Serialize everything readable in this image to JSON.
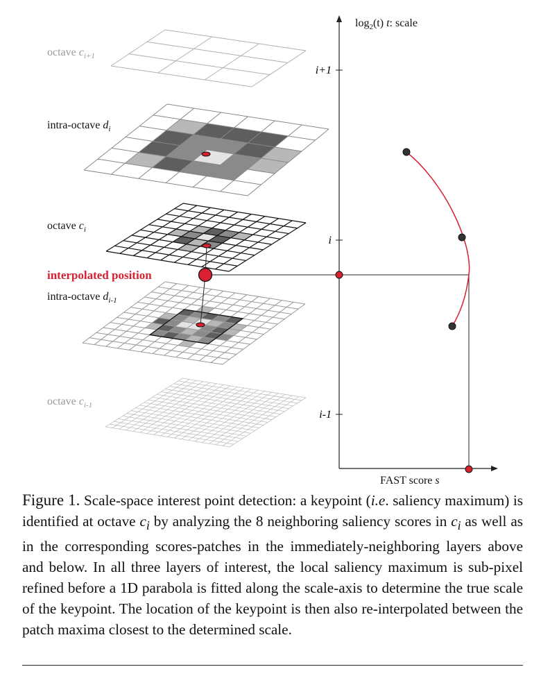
{
  "layers": [
    {
      "label": "octave",
      "sub": "i+1",
      "symbol": "c",
      "muted": true
    },
    {
      "label": "intra-octave",
      "sub": "i",
      "symbol": "d",
      "muted": false
    },
    {
      "label": "octave",
      "sub": "i",
      "symbol": "c",
      "muted": false
    },
    {
      "label": "intra-octave",
      "sub": "i-1",
      "symbol": "d",
      "muted": false
    },
    {
      "label": "octave",
      "sub": "i-1",
      "symbol": "c",
      "muted": true
    }
  ],
  "interpolated_label": "interpolated position",
  "axes": {
    "y_title_pre": "log",
    "y_title_sub": "2",
    "y_title_mid": "(t)",
    "y_title_var": "t",
    "y_title_post": ": scale",
    "x_title_pre": "FAST score ",
    "x_title_var": "s",
    "y_ticks": [
      "i+1",
      "i",
      "i-1"
    ]
  },
  "colors": {
    "accent": "#d92030",
    "ink": "#111111",
    "muted": "#9a9a9a"
  },
  "caption": {
    "fig_label": "Figure 1.",
    "p1": " Scale-space interest point detection: a keypoint (",
    "ie": "i.e",
    "p2": ". saliency maximum) is identified at octave ",
    "v1": "c",
    "v1sub": "i",
    "p3": " by analyzing the 8 neighboring saliency scores in ",
    "v2": "c",
    "v2sub": "i",
    "p4": " as well as in the corresponding scores-patches in the immediately-neighboring layers above and below. In all three layers of interest, the local saliency maximum is sub-pixel refined before a 1D parabola is fitted along the scale-axis to determine the true scale of the keypoint. The location of the keypoint is then also re-interpolated between the patch maxima closest to the determined scale."
  }
}
